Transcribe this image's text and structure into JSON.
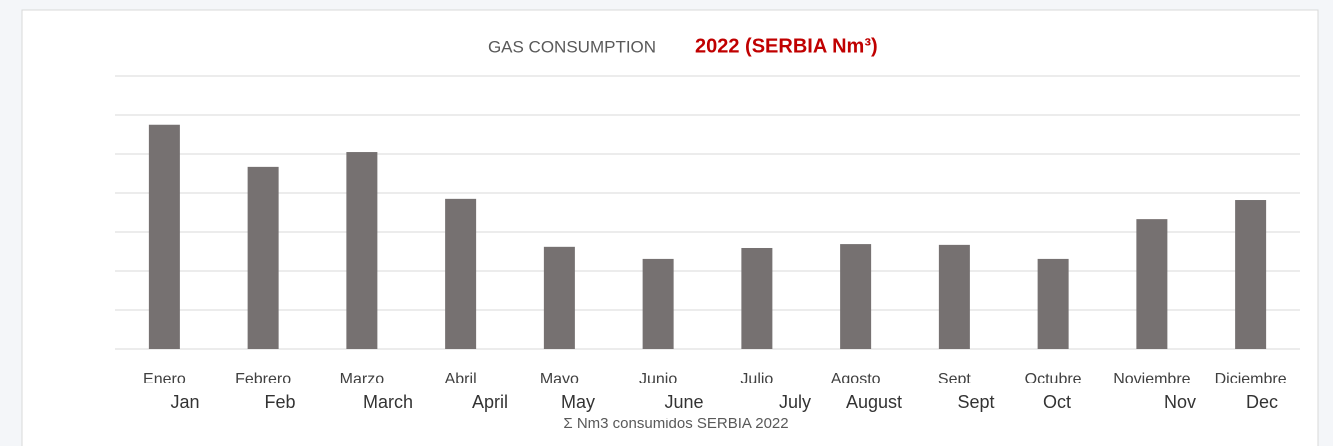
{
  "chart_data": {
    "type": "bar",
    "title": "GAS CONSUMPTION",
    "subtitle": "2022 (SERBIA Nm³)",
    "categories": [
      "Enero",
      "Febrero",
      "Marzo",
      "Abril",
      "Mayo",
      "Junio",
      "Julio",
      "Agosto",
      "Sept",
      "Octubre",
      "Noviembre",
      "Diciembre"
    ],
    "overlay_labels": [
      "Jan",
      "Feb",
      "March",
      "April",
      "May",
      "June",
      "July",
      "August",
      "Sept",
      "Oct",
      "Nov",
      "Dec"
    ],
    "series": [
      {
        "name": "Σ Nm3 consumidos SERBIA 2022",
        "color": "#767171",
        "values": [
          57500,
          46700,
          50500,
          38500,
          26200,
          23100,
          25900,
          26900,
          26700,
          23100,
          33300,
          38200
        ]
      }
    ],
    "ylim": [
      0,
      70000
    ],
    "yticks": [
      0,
      10000,
      20000,
      30000,
      40000,
      50000,
      60000,
      70000
    ],
    "grid": true
  }
}
